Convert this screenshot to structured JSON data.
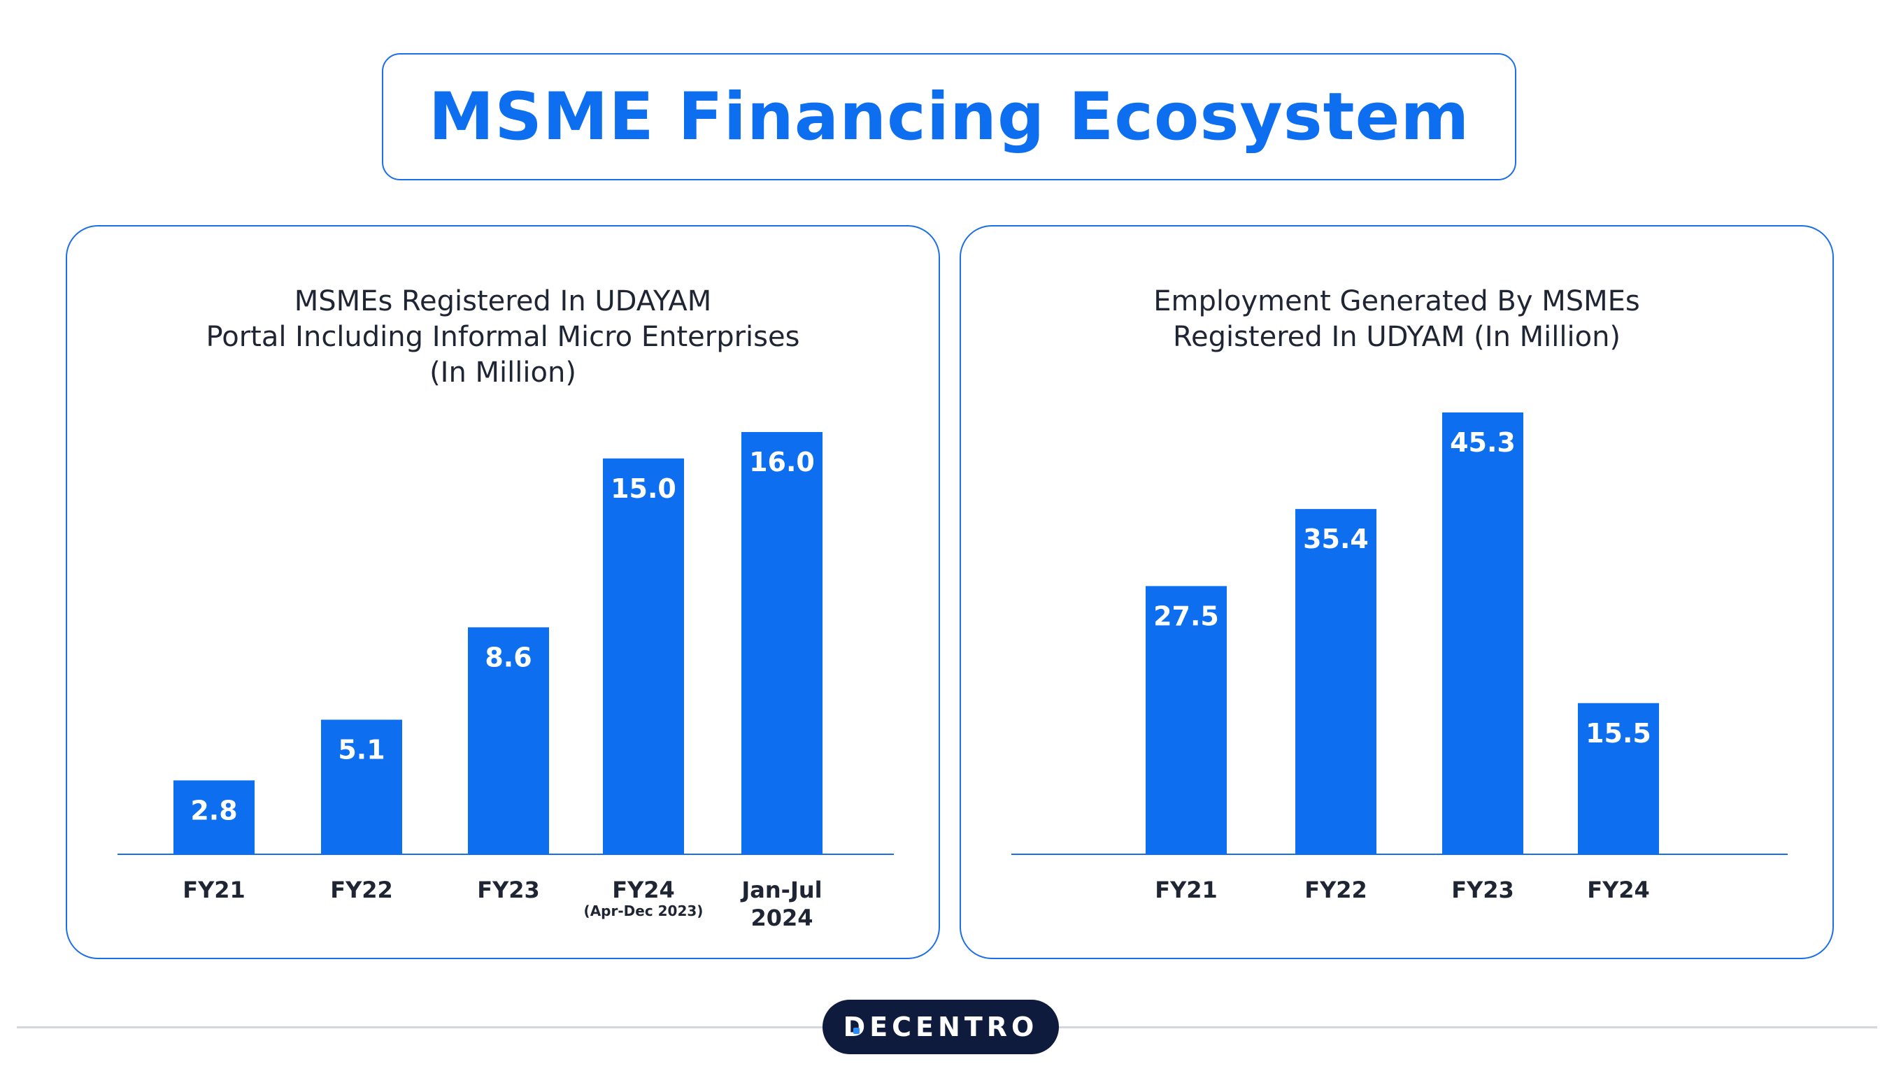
{
  "page": {
    "title": "MSME Financing Ecosystem",
    "brand": "DECENTRO",
    "accent_color": "#0d6ef0"
  },
  "chart_data": [
    {
      "type": "bar",
      "title_lines": [
        "MSMEs Registered In UDAYAM",
        "Portal Including Informal Micro Enterprises",
        "(In Million)"
      ],
      "categories": [
        "FY21",
        "FY22",
        "FY23",
        "FY24",
        "Jan-Jul 2024"
      ],
      "category_lines": [
        [
          "FY21"
        ],
        [
          "FY22"
        ],
        [
          "FY23"
        ],
        [
          "FY24"
        ],
        [
          "Jan-Jul",
          "2024"
        ]
      ],
      "category_notes": [
        "",
        "",
        "",
        "(Apr-Dec 2023)",
        ""
      ],
      "values": [
        2.8,
        5.1,
        8.6,
        15.0,
        16.0
      ],
      "value_labels": [
        "2.8",
        "5.1",
        "8.6",
        "15.0",
        "16.0"
      ],
      "ylim": [
        0,
        16.0
      ],
      "grid": false
    },
    {
      "type": "bar",
      "title_lines": [
        "Employment Generated By MSMEs",
        "Registered In UDYAM (In Million)"
      ],
      "categories": [
        "FY21",
        "FY22",
        "FY23",
        "FY24"
      ],
      "category_lines": [
        [
          "FY21"
        ],
        [
          "FY22"
        ],
        [
          "FY23"
        ],
        [
          "FY24"
        ]
      ],
      "category_notes": [
        "",
        "",
        "",
        ""
      ],
      "values": [
        27.5,
        35.4,
        45.3,
        15.5
      ],
      "value_labels": [
        "27.5",
        "35.4",
        "45.3",
        "15.5"
      ],
      "ylim": [
        0,
        45.3
      ],
      "grid": false
    }
  ]
}
